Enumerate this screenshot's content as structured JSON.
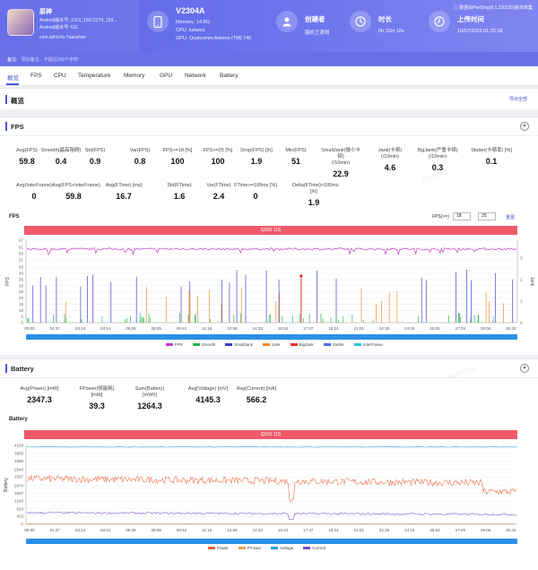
{
  "app": {
    "name": "原神",
    "version_line": "Android版本号: 3.8.0_15672274_159...",
    "build_line": "Android版本号: 611",
    "package": "com.miHoYo.Yuanshen"
  },
  "device": {
    "name": "V2304A",
    "memory": "Memory: 14.8G",
    "cpu": "CPU: kalama",
    "gpu": "GPU: Qualcomm Adreno (TM) 740"
  },
  "creator": {
    "title": "创建者",
    "value": "路机王測哥"
  },
  "duration": {
    "title": "时长",
    "value": "0h 32m 18s"
  },
  "upload": {
    "title": "上传时间",
    "value": "10/07/2023 01:25:18"
  },
  "top_note": "数据由PerfDog(8.1.230120)版本收集",
  "note_bar": {
    "label": "备注:",
    "hint": "添加备注，不超过200个字符"
  },
  "tabs": [
    "概览",
    "FPS",
    "CPU",
    "Temperature",
    "Memory",
    "GPU",
    "Network",
    "Battery"
  ],
  "overview": {
    "title": "概览",
    "export": "导出全部"
  },
  "fps_card": {
    "title": "FPS",
    "stats_row1": [
      {
        "label": "Avg(FPS)",
        "value": "59.8"
      },
      {
        "label": "Smooth(最高阻碍)",
        "value": "0.4"
      },
      {
        "label": "Std(FPS)",
        "value": "0.9"
      },
      {
        "label": "Var(FPS)",
        "value": "0.8"
      },
      {
        "label": "FPS>=18 [%]",
        "value": "100"
      },
      {
        "label": "FPS>=25 [%]",
        "value": "100"
      },
      {
        "label": "Drop(FPS) [/h]",
        "value": "1.9"
      },
      {
        "label": "Min(FPS)",
        "value": "51"
      },
      {
        "label": "SmallJank(微小卡顿)\n(/10min)",
        "value": "22.9"
      },
      {
        "label": "Jank(卡顿)\n(/10min)",
        "value": "4.6"
      },
      {
        "label": "BigJank(严重卡顿)\n(/10min)",
        "value": "0.3"
      },
      {
        "label": "Stutter(卡顿率) [%]",
        "value": "0.1"
      }
    ],
    "stats_row2": [
      {
        "label": "Avg(InterFrame)",
        "value": "0"
      },
      {
        "label": "Avg(FPS+InterFrame)",
        "value": "59.8"
      },
      {
        "label": "Avg(FTime) [ms]",
        "value": "16.7"
      },
      {
        "label": "Std(FTime)",
        "value": "1.6"
      },
      {
        "label": "Var(FTime)",
        "value": "2.4"
      },
      {
        "label": "FTime>=100ms [%]",
        "value": "0"
      },
      {
        "label": "Delta(FTime)>100ms [/h]",
        "value": "1.9"
      }
    ],
    "chart_title": "FPS",
    "band_label": "iQOO 11S",
    "fps_setting_label": "FPS(>=)",
    "fps_values": [
      "18",
      "25"
    ],
    "apply": "重置"
  },
  "battery_card": {
    "title": "Battery",
    "stats": [
      {
        "label": "Avg(Power) [mW]",
        "value": "2347.3"
      },
      {
        "label": "FPower(帧能耗) [mW]",
        "value": "39.3"
      },
      {
        "label": "Sum(Battery) [mWh]",
        "value": "1264.3"
      },
      {
        "label": "Avg(Voltage) [mV]",
        "value": "4145.3"
      },
      {
        "label": "Avg(Current) [mA]",
        "value": "566.2"
      }
    ],
    "chart_title": "Battery",
    "band_label": "iQOO 11S"
  },
  "chart_data": [
    {
      "type": "line",
      "title": "FPS",
      "ylabel": "FPS",
      "ylabel_right": "Jank",
      "yticks": [
        0,
        5,
        10,
        15,
        20,
        25,
        30,
        35,
        40,
        45,
        51,
        56,
        61,
        67
      ],
      "yticks_right": [
        0,
        1,
        2,
        3
      ],
      "ylim": [
        0,
        67
      ],
      "x_ticks": [
        "00:00",
        "01:37",
        "03:14",
        "04:51",
        "06:28",
        "08:05",
        "09:42",
        "11:19",
        "12:56",
        "14:33",
        "16:10",
        "17:47",
        "19:24",
        "21:01",
        "22:38",
        "24:15",
        "25:52",
        "27:29",
        "29:06",
        "30:43"
      ],
      "series": [
        {
          "name": "FPS",
          "color": "#c23cc0",
          "approx_value": 59.8
        },
        {
          "name": "Smooth",
          "color": "#2bb24c"
        },
        {
          "name": "SmallJank",
          "color": "#3b3fd6"
        },
        {
          "name": "Jank",
          "color": "#f08a2c"
        },
        {
          "name": "BigJank",
          "color": "#e83030"
        },
        {
          "name": "Stutter",
          "color": "#4a6ee0"
        },
        {
          "name": "InterFrame",
          "color": "#2bc0d8"
        }
      ],
      "legend": "bottom"
    },
    {
      "type": "line",
      "title": "Battery",
      "ylabel": "Battery",
      "yticks": [
        0,
        423,
        823,
        1240,
        1657,
        2074,
        2537,
        2940,
        3388,
        3805,
        4229
      ],
      "ylim": [
        0,
        4229
      ],
      "x_ticks": [
        "00:00",
        "01:37",
        "03:14",
        "04:51",
        "06:28",
        "08:05",
        "09:42",
        "11:19",
        "12:56",
        "14:33",
        "16:10",
        "17:47",
        "19:24",
        "21:01",
        "22:38",
        "24:15",
        "25:52",
        "27:29",
        "29:06",
        "30:43"
      ],
      "series": [
        {
          "name": "Power",
          "color": "#e8643c",
          "approx_value": 2347.3
        },
        {
          "name": "FPower",
          "color": "#f0a050",
          "approx_value": 39.3
        },
        {
          "name": "Voltage",
          "color": "#2ba0d8",
          "approx_value": 4145.3
        },
        {
          "name": "Current",
          "color": "#7a4ac8",
          "approx_value": 566.2
        }
      ],
      "legend": "bottom"
    }
  ]
}
